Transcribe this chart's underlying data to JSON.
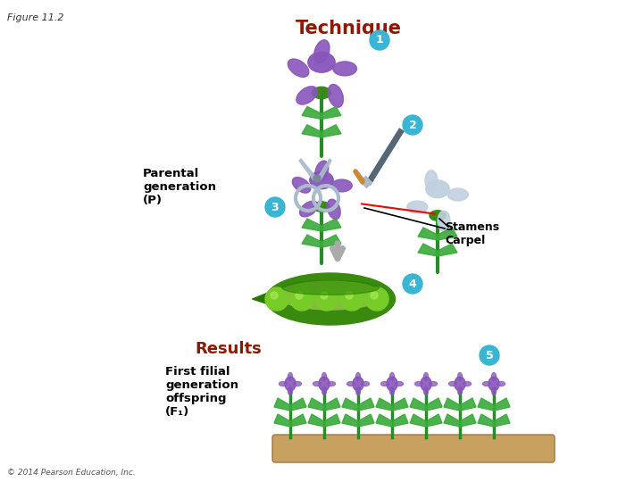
{
  "figure_label": "Figure 11.2",
  "title": "Technique",
  "results_label": "Results",
  "step_circle_color": "#3ab5d4",
  "step_text_color": "#ffffff",
  "title_color": "#8b1a00",
  "results_color": "#8b1a00",
  "parental_text": "Parental\ngeneration\n(P)",
  "stamens_carpel_text": "Stamens\nCarpel",
  "first_filial_text": "First filial\ngeneration\noffspring\n(F₁)",
  "copyright_text": "© 2014 Pearson Education, Inc.",
  "bg_color": "#ffffff",
  "label_color": "#000000",
  "figure_label_color": "#333333",
  "flower_purple": "#8855bb",
  "flower_white": "#c8d8e8",
  "stem_green": "#2a8a2a",
  "leaf_green": "#3aaa3a",
  "pod_outer": "#3a8a10",
  "pod_inner": "#5ab020",
  "pea_color": "#78cc28",
  "ground_color": "#c8a060",
  "scissors_color": "#aabbcc",
  "brush_handle": "#334455",
  "brush_tip": "#cc8833"
}
